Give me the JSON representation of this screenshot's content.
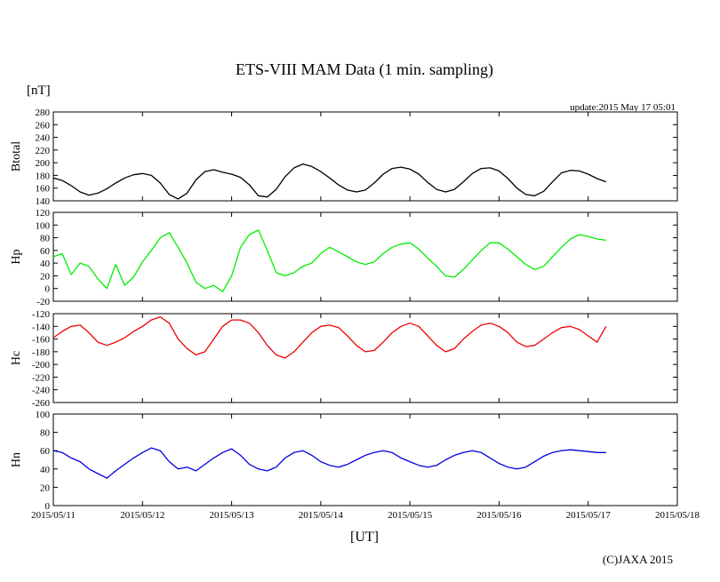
{
  "chart_data": {
    "type": "line",
    "title": "ETS-VIII MAM Data (1 min. sampling)",
    "unit_label": "[nT]",
    "update_text": "update:2015 May 17 05:01",
    "xlabel": "[UT]",
    "copyright": "(C)JAXA 2015",
    "x_ticks": [
      "2015/05/11",
      "2015/05/12",
      "2015/05/13",
      "2015/05/14",
      "2015/05/15",
      "2015/05/16",
      "2015/05/17",
      "2015/05/18"
    ],
    "x_range_days": [
      0,
      7
    ],
    "panels": [
      {
        "name": "Btotal",
        "ylabel": "Btotal",
        "color": "#000000",
        "ylim": [
          140,
          280
        ],
        "yticks": [
          140,
          160,
          180,
          200,
          220,
          240,
          260,
          280
        ],
        "x": [
          0.0,
          0.1,
          0.2,
          0.3,
          0.4,
          0.5,
          0.6,
          0.7,
          0.8,
          0.9,
          1.0,
          1.1,
          1.2,
          1.3,
          1.4,
          1.5,
          1.6,
          1.7,
          1.8,
          1.9,
          2.0,
          2.1,
          2.2,
          2.3,
          2.4,
          2.5,
          2.6,
          2.7,
          2.8,
          2.9,
          3.0,
          3.1,
          3.2,
          3.3,
          3.4,
          3.5,
          3.6,
          3.7,
          3.8,
          3.9,
          4.0,
          4.1,
          4.2,
          4.3,
          4.4,
          4.5,
          4.6,
          4.7,
          4.8,
          4.9,
          5.0,
          5.1,
          5.2,
          5.3,
          5.4,
          5.5,
          5.6,
          5.7,
          5.8,
          5.9,
          6.0,
          6.1,
          6.2
        ],
        "values": [
          176,
          172,
          164,
          154,
          149,
          152,
          159,
          168,
          176,
          181,
          183,
          180,
          168,
          150,
          143,
          152,
          173,
          186,
          189,
          185,
          182,
          177,
          165,
          148,
          146,
          158,
          178,
          192,
          198,
          194,
          186,
          176,
          165,
          157,
          154,
          157,
          168,
          182,
          191,
          193,
          190,
          182,
          169,
          158,
          154,
          158,
          170,
          183,
          191,
          192,
          187,
          175,
          160,
          150,
          148,
          155,
          170,
          184,
          188,
          187,
          182,
          175,
          170
        ]
      },
      {
        "name": "Hp",
        "ylabel": "Hp",
        "color": "#00ee00",
        "ylim": [
          -20,
          120
        ],
        "yticks": [
          -20,
          0,
          20,
          40,
          60,
          80,
          100,
          120
        ],
        "x": [
          0.0,
          0.1,
          0.2,
          0.3,
          0.4,
          0.5,
          0.6,
          0.7,
          0.8,
          0.9,
          1.0,
          1.1,
          1.2,
          1.3,
          1.4,
          1.5,
          1.6,
          1.7,
          1.8,
          1.9,
          2.0,
          2.1,
          2.2,
          2.3,
          2.4,
          2.5,
          2.6,
          2.7,
          2.8,
          2.9,
          3.0,
          3.1,
          3.2,
          3.3,
          3.4,
          3.5,
          3.6,
          3.7,
          3.8,
          3.9,
          4.0,
          4.1,
          4.2,
          4.3,
          4.4,
          4.5,
          4.6,
          4.7,
          4.8,
          4.9,
          5.0,
          5.1,
          5.2,
          5.3,
          5.4,
          5.5,
          5.6,
          5.7,
          5.8,
          5.9,
          6.0,
          6.1,
          6.2
        ],
        "values": [
          50,
          55,
          22,
          40,
          35,
          15,
          0,
          38,
          5,
          18,
          42,
          60,
          80,
          88,
          65,
          40,
          10,
          0,
          5,
          -5,
          20,
          65,
          85,
          92,
          60,
          25,
          20,
          25,
          35,
          40,
          55,
          65,
          58,
          50,
          42,
          38,
          42,
          55,
          65,
          70,
          72,
          62,
          48,
          35,
          20,
          18,
          30,
          45,
          60,
          72,
          72,
          62,
          50,
          38,
          30,
          35,
          50,
          65,
          78,
          85,
          82,
          78,
          76
        ]
      },
      {
        "name": "Hc",
        "ylabel": "Hc",
        "color": "#ee0000",
        "ylim": [
          -260,
          -120
        ],
        "yticks": [
          -260,
          -240,
          -220,
          -200,
          -180,
          -160,
          -140,
          -120
        ],
        "x": [
          0.0,
          0.1,
          0.2,
          0.3,
          0.4,
          0.5,
          0.6,
          0.7,
          0.8,
          0.9,
          1.0,
          1.1,
          1.2,
          1.3,
          1.4,
          1.5,
          1.6,
          1.7,
          1.8,
          1.9,
          2.0,
          2.1,
          2.2,
          2.3,
          2.4,
          2.5,
          2.6,
          2.7,
          2.8,
          2.9,
          3.0,
          3.1,
          3.2,
          3.3,
          3.4,
          3.5,
          3.6,
          3.7,
          3.8,
          3.9,
          4.0,
          4.1,
          4.2,
          4.3,
          4.4,
          4.5,
          4.6,
          4.7,
          4.8,
          4.9,
          5.0,
          5.1,
          5.2,
          5.3,
          5.4,
          5.5,
          5.6,
          5.7,
          5.8,
          5.9,
          6.0,
          6.1,
          6.2
        ],
        "values": [
          -158,
          -148,
          -140,
          -138,
          -150,
          -165,
          -170,
          -165,
          -158,
          -148,
          -140,
          -130,
          -125,
          -135,
          -160,
          -175,
          -185,
          -180,
          -160,
          -140,
          -130,
          -130,
          -135,
          -150,
          -170,
          -185,
          -190,
          -180,
          -165,
          -150,
          -140,
          -138,
          -142,
          -155,
          -170,
          -180,
          -178,
          -165,
          -150,
          -140,
          -135,
          -140,
          -155,
          -170,
          -180,
          -175,
          -160,
          -148,
          -138,
          -135,
          -140,
          -150,
          -165,
          -172,
          -170,
          -160,
          -150,
          -142,
          -140,
          -145,
          -155,
          -165,
          -140
        ]
      },
      {
        "name": "Hn",
        "ylabel": "Hn",
        "color": "#0000dd",
        "ylim": [
          0,
          100
        ],
        "yticks": [
          0,
          20,
          40,
          60,
          80,
          100
        ],
        "x": [
          0.0,
          0.1,
          0.2,
          0.3,
          0.4,
          0.5,
          0.6,
          0.7,
          0.8,
          0.9,
          1.0,
          1.1,
          1.2,
          1.3,
          1.4,
          1.5,
          1.6,
          1.7,
          1.8,
          1.9,
          2.0,
          2.1,
          2.2,
          2.3,
          2.4,
          2.5,
          2.6,
          2.7,
          2.8,
          2.9,
          3.0,
          3.1,
          3.2,
          3.3,
          3.4,
          3.5,
          3.6,
          3.7,
          3.8,
          3.9,
          4.0,
          4.1,
          4.2,
          4.3,
          4.4,
          4.5,
          4.6,
          4.7,
          4.8,
          4.9,
          5.0,
          5.1,
          5.2,
          5.3,
          5.4,
          5.5,
          5.6,
          5.7,
          5.8,
          5.9,
          6.0,
          6.1,
          6.2
        ],
        "values": [
          60,
          58,
          52,
          48,
          40,
          35,
          30,
          38,
          45,
          52,
          58,
          63,
          60,
          48,
          40,
          42,
          38,
          45,
          52,
          58,
          62,
          55,
          45,
          40,
          38,
          42,
          52,
          58,
          60,
          55,
          48,
          44,
          42,
          45,
          50,
          55,
          58,
          60,
          58,
          52,
          48,
          44,
          42,
          44,
          50,
          55,
          58,
          60,
          58,
          52,
          46,
          42,
          40,
          42,
          48,
          54,
          58,
          60,
          61,
          60,
          59,
          58,
          58
        ]
      }
    ]
  }
}
